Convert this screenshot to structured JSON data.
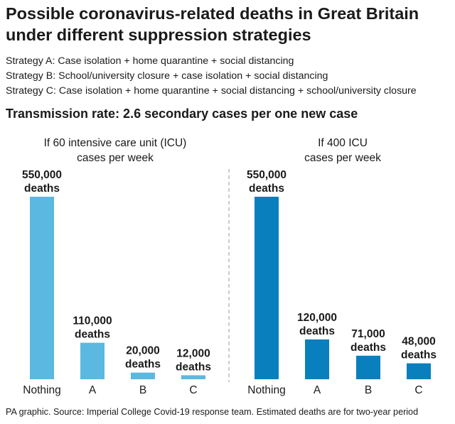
{
  "title_line1": "Possible coronavirus-related deaths in Great Britain",
  "title_line2": "under different suppression strategies",
  "strategies": [
    "Strategy A: Case isolation + home quarantine + social distancing",
    "Strategy B: School/university closure + case isolation + social distancing",
    "Strategy C: Case isolation + home quarantine + social distancing + school/university closure"
  ],
  "subtitle": "Transmission rate: 2.6 secondary cases per one new case",
  "footer": "PA graphic. Source: Imperial College Covid-19 response team. Estimated deaths are for two-year period",
  "chart_data": [
    {
      "type": "bar",
      "title": [
        "If 60 intensive care unit (ICU)",
        "cases per week"
      ],
      "categories": [
        "Nothing",
        "A",
        "B",
        "C"
      ],
      "values": [
        550000,
        110000,
        20000,
        12000
      ],
      "labels": [
        "550,000",
        "110,000",
        "20,000",
        "12,000"
      ],
      "unit": "deaths",
      "color": "#5bb8e0",
      "ylim": [
        0,
        550000
      ]
    },
    {
      "type": "bar",
      "title": [
        "If 400 ICU",
        "cases per week"
      ],
      "categories": [
        "Nothing",
        "A",
        "B",
        "C"
      ],
      "values": [
        550000,
        120000,
        71000,
        48000
      ],
      "labels": [
        "550,000",
        "120,000",
        "71,000",
        "48,000"
      ],
      "unit": "deaths",
      "color": "#0a7fbd",
      "ylim": [
        0,
        550000
      ]
    }
  ]
}
